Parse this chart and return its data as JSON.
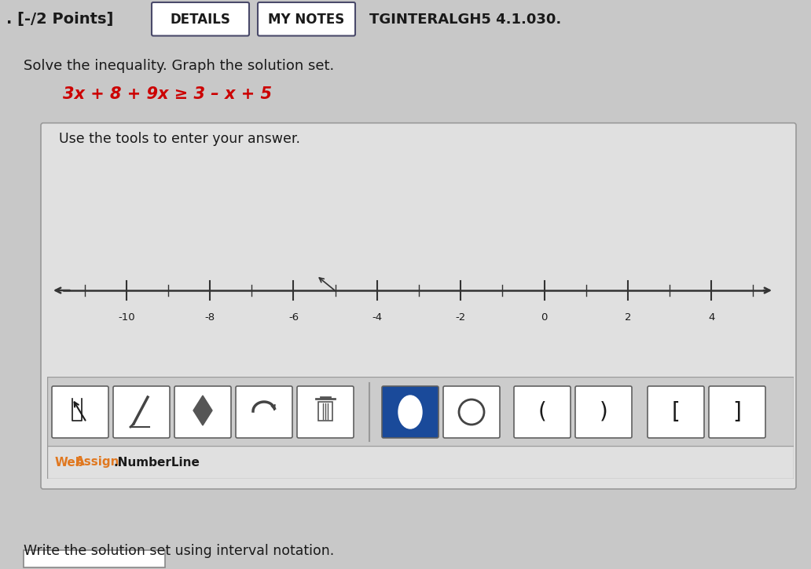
{
  "title_left": ". [-/2 Points]",
  "btn_details": "DETAILS",
  "btn_notes": "MY NOTES",
  "title_right": "TGINTERALGH5 4.1.030.",
  "problem_text": "Solve the inequality. Graph the solution set.",
  "inequality_text": "3x + 8 + 9x ≥ 3 – x + 5",
  "inequality_color": "#cc0000",
  "tool_instruction": "Use the tools to enter your answer.",
  "number_line_ticks": [
    -10,
    -8,
    -6,
    -4,
    -2,
    0,
    2,
    4
  ],
  "number_line_tick_labels": [
    "-10",
    "-8",
    "-6",
    "-4",
    "-2",
    "0",
    "2",
    "4"
  ],
  "webassign_text": "Web",
  "webassign_assign": "Assign",
  "webassign_color": "#e07820",
  "numberline_text": ".NumberLine",
  "interval_prompt": "Write the solution set using interval notation.",
  "bg_page": "#c8c8c8",
  "bg_content": "#d8d8d8",
  "bg_panel": "#e0e0e0",
  "bg_toolbar": "#cccccc",
  "bg_white": "#ffffff",
  "bg_btn_blue": "#1a4a9a",
  "border_dark": "#606060",
  "border_mid": "#999999",
  "text_dark": "#1a1a1a",
  "btn_border": "#4a4a6a"
}
